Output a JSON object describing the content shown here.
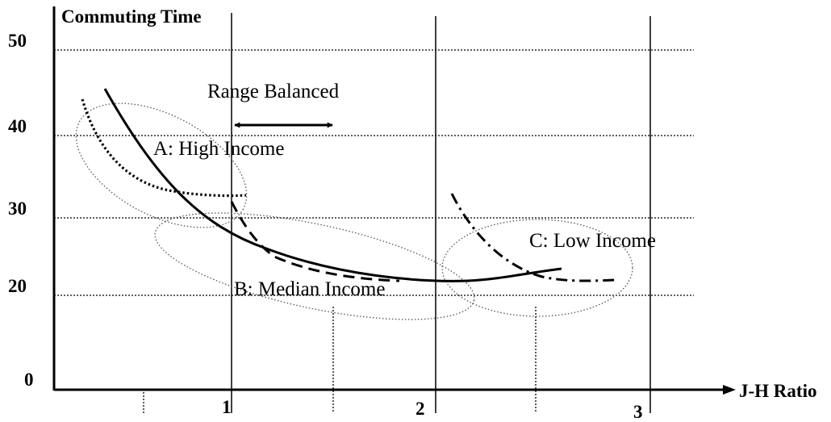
{
  "diagram": {
    "y_axis_title": "Commuting Time",
    "x_axis_title": "J-H Ratio",
    "y_ticks": [
      "0",
      "20",
      "30",
      "40",
      "50"
    ],
    "x_ticks": [
      "1",
      "2",
      "3"
    ],
    "range_label": "Range Balanced",
    "groups": {
      "high": "A: High Income",
      "median": "B: Median Income",
      "low": "C: Low Income"
    }
  }
}
